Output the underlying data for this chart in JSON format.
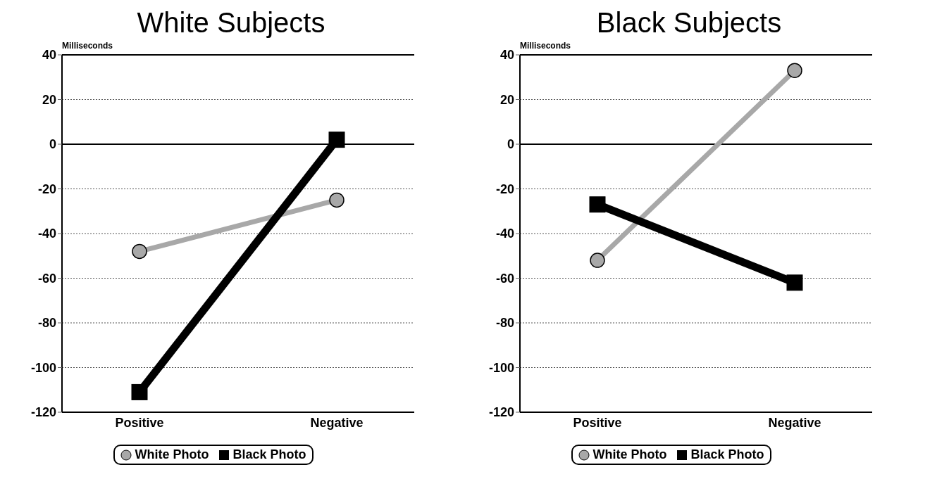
{
  "chart_data": [
    {
      "type": "line",
      "title": "White Subjects",
      "ylabel": "Milliseconds",
      "categories": [
        "Positive",
        "Negative"
      ],
      "ylim": [
        -120,
        40
      ],
      "yticks": [
        -120,
        -100,
        -80,
        -60,
        -40,
        -20,
        0,
        20,
        40
      ],
      "grid": "y",
      "legend": "bottom",
      "ref_lines": [
        {
          "axis": "y",
          "value": 0,
          "color": "#000000"
        }
      ],
      "series": [
        {
          "name": "White Photo",
          "color": "#a8a8a8",
          "marker": "circle",
          "values": [
            -48,
            -25
          ]
        },
        {
          "name": "Black Photo",
          "color": "#000000",
          "marker": "square",
          "values": [
            -111,
            2
          ]
        }
      ]
    },
    {
      "type": "line",
      "title": "Black Subjects",
      "ylabel": "Milliseconds",
      "categories": [
        "Positive",
        "Negative"
      ],
      "ylim": [
        -120,
        40
      ],
      "yticks": [
        -120,
        -100,
        -80,
        -60,
        -40,
        -20,
        0,
        20,
        40
      ],
      "grid": "y",
      "legend": "bottom",
      "ref_lines": [
        {
          "axis": "y",
          "value": 0,
          "color": "#000000"
        }
      ],
      "series": [
        {
          "name": "White Photo",
          "color": "#a8a8a8",
          "marker": "circle",
          "values": [
            -52,
            33
          ]
        },
        {
          "name": "Black Photo",
          "color": "#000000",
          "marker": "square",
          "values": [
            -27,
            -62
          ]
        }
      ]
    }
  ]
}
